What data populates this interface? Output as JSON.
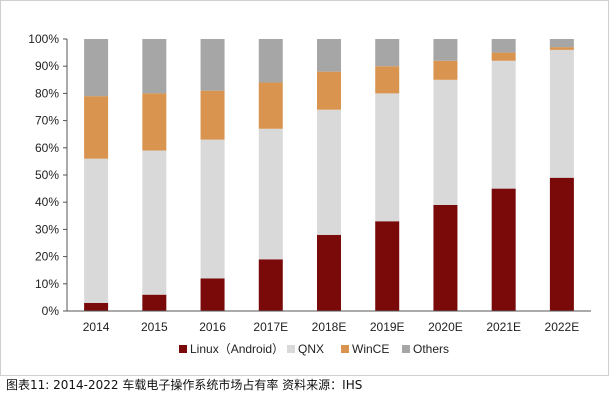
{
  "caption": "图表11: 2014-2022 车载电子操作系统市场占有率  资料来源：IHS",
  "chart_data": {
    "type": "bar",
    "stacked": true,
    "categories": [
      "2014",
      "2015",
      "2016",
      "2017E",
      "2018E",
      "2019E",
      "2020E",
      "2021E",
      "2022E"
    ],
    "series": [
      {
        "name": "Linux（Android）",
        "color": "#7a0a0a",
        "values": [
          3,
          6,
          12,
          19,
          28,
          33,
          39,
          45,
          49
        ]
      },
      {
        "name": "QNX",
        "color": "#d9d9d9",
        "values": [
          53,
          53,
          51,
          48,
          46,
          47,
          46,
          47,
          47
        ]
      },
      {
        "name": "WinCE",
        "color": "#d9954f",
        "values": [
          23,
          21,
          18,
          17,
          14,
          10,
          7,
          3,
          1
        ]
      },
      {
        "name": "Others",
        "color": "#a6a6a6",
        "values": [
          21,
          20,
          19,
          16,
          12,
          10,
          8,
          5,
          3
        ]
      }
    ],
    "yticks": [
      "0%",
      "10%",
      "20%",
      "30%",
      "40%",
      "50%",
      "60%",
      "70%",
      "80%",
      "90%",
      "100%"
    ],
    "ylim": [
      0,
      100
    ],
    "grid": false,
    "legend_position": "bottom"
  }
}
